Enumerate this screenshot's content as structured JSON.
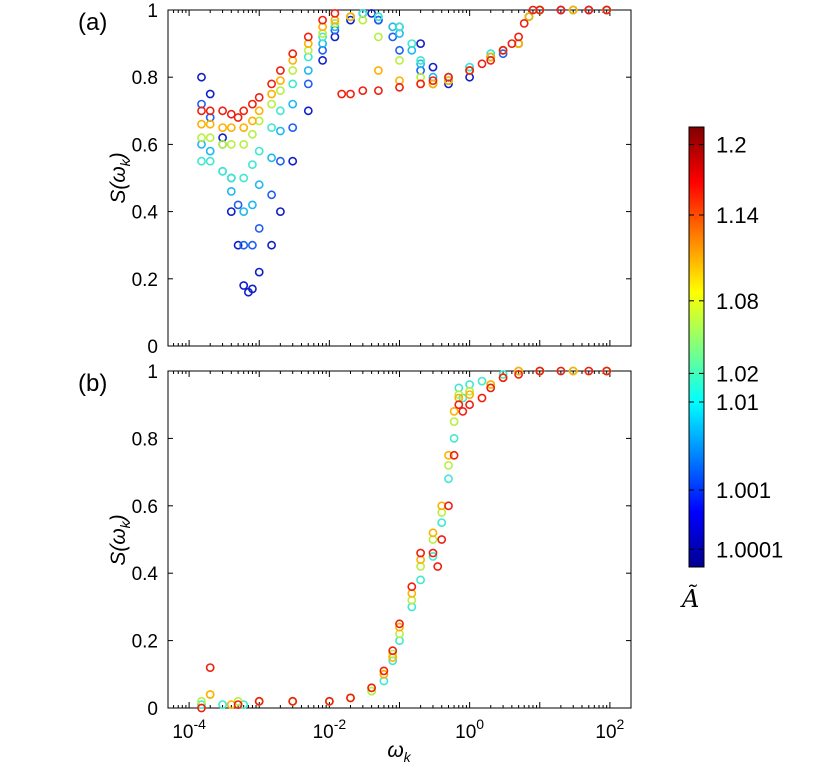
{
  "chart_data": [
    {
      "type": "scatter",
      "panel_label": "(a)",
      "xlabel": "ω",
      "xlabel_sub": "k",
      "ylabel_main": "S(ω",
      "ylabel_sub": "k",
      "ylabel_close": ")",
      "x_scale": "log",
      "xlim": [
        5e-05,
        200
      ],
      "ylim": [
        0,
        1
      ],
      "y_ticks": [
        0,
        0.2,
        0.4,
        0.6,
        0.8,
        1
      ],
      "y_tick_labels": [
        "0",
        "0.2",
        "0.4",
        "0.6",
        "0.8",
        "1"
      ],
      "grid": false,
      "series": [
        {
          "color_value": 1.0001,
          "x": [
            0.00015,
            0.0002,
            0.0003,
            0.0004,
            0.0005,
            0.0006,
            0.0007,
            0.0008,
            0.001,
            0.0015,
            0.002,
            0.003,
            0.005,
            0.008,
            0.012,
            0.02,
            0.03,
            0.04,
            0.05,
            0.1,
            0.2,
            0.3,
            0.5,
            1,
            2,
            3,
            5,
            7,
            10,
            20,
            50,
            90
          ],
          "y": [
            0.8,
            0.75,
            0.62,
            0.4,
            0.3,
            0.18,
            0.16,
            0.17,
            0.22,
            0.3,
            0.4,
            0.55,
            0.7,
            0.85,
            0.92,
            0.97,
            0.99,
            0.99,
            0.97,
            0.95,
            0.9,
            0.83,
            0.78,
            0.8,
            0.86,
            0.88,
            0.9,
            0.98,
            1,
            1,
            1,
            1
          ]
        },
        {
          "color_value": 1.001,
          "x": [
            0.00015,
            0.0002,
            0.0003,
            0.0004,
            0.0005,
            0.0006,
            0.0008,
            0.001,
            0.0015,
            0.002,
            0.003,
            0.005,
            0.008,
            0.012,
            0.02,
            0.03,
            0.05,
            0.08,
            0.1,
            0.2,
            0.3,
            0.5,
            1,
            2,
            3,
            5,
            7,
            10,
            30,
            90
          ],
          "y": [
            0.72,
            0.68,
            0.6,
            0.5,
            0.42,
            0.3,
            0.3,
            0.35,
            0.45,
            0.55,
            0.65,
            0.78,
            0.88,
            0.94,
            0.98,
            0.99,
            0.97,
            0.92,
            0.88,
            0.82,
            0.78,
            0.79,
            0.82,
            0.86,
            0.87,
            0.9,
            0.98,
            1,
            1,
            1
          ]
        },
        {
          "color_value": 1.01,
          "x": [
            0.00015,
            0.0002,
            0.0003,
            0.0004,
            0.0006,
            0.0008,
            0.001,
            0.0015,
            0.002,
            0.003,
            0.005,
            0.008,
            0.012,
            0.02,
            0.03,
            0.05,
            0.08,
            0.1,
            0.15,
            0.2,
            0.3,
            0.5,
            1,
            2,
            3,
            5,
            7,
            10,
            30,
            90
          ],
          "y": [
            0.6,
            0.58,
            0.52,
            0.46,
            0.4,
            0.42,
            0.48,
            0.56,
            0.64,
            0.72,
            0.82,
            0.9,
            0.95,
            0.98,
            0.99,
            0.98,
            0.95,
            0.93,
            0.88,
            0.84,
            0.8,
            0.8,
            0.83,
            0.87,
            0.88,
            0.9,
            0.98,
            1,
            1,
            1
          ]
        },
        {
          "color_value": 1.02,
          "x": [
            0.00015,
            0.0002,
            0.0003,
            0.0004,
            0.0006,
            0.0008,
            0.001,
            0.0015,
            0.002,
            0.003,
            0.005,
            0.008,
            0.012,
            0.02,
            0.03,
            0.05,
            0.1,
            0.15,
            0.2,
            0.3,
            0.5,
            1,
            2,
            3,
            5,
            7,
            10,
            30,
            90
          ],
          "y": [
            0.55,
            0.55,
            0.52,
            0.5,
            0.5,
            0.54,
            0.58,
            0.65,
            0.7,
            0.78,
            0.86,
            0.92,
            0.96,
            0.98,
            0.99,
            0.98,
            0.95,
            0.9,
            0.85,
            0.78,
            0.8,
            0.83,
            0.87,
            0.88,
            0.9,
            0.98,
            1,
            1,
            1
          ]
        },
        {
          "color_value": 1.08,
          "x": [
            0.00015,
            0.0002,
            0.0003,
            0.0004,
            0.0006,
            0.0008,
            0.001,
            0.0015,
            0.002,
            0.003,
            0.005,
            0.008,
            0.012,
            0.02,
            0.03,
            0.05,
            0.1,
            0.2,
            0.3,
            0.5,
            1,
            2,
            3,
            5,
            7,
            10,
            30,
            90
          ],
          "y": [
            0.62,
            0.62,
            0.6,
            0.6,
            0.6,
            0.63,
            0.67,
            0.72,
            0.76,
            0.82,
            0.88,
            0.93,
            0.96,
            0.98,
            0.97,
            0.92,
            0.85,
            0.8,
            0.78,
            0.79,
            0.82,
            0.86,
            0.88,
            0.9,
            0.98,
            1,
            1,
            1
          ]
        },
        {
          "color_value": 1.14,
          "x": [
            0.00015,
            0.0002,
            0.0003,
            0.0004,
            0.0006,
            0.0008,
            0.001,
            0.0015,
            0.002,
            0.003,
            0.005,
            0.008,
            0.012,
            0.02,
            0.05,
            0.1,
            0.2,
            0.3,
            0.5,
            1,
            2,
            3,
            5,
            7,
            10,
            30,
            90
          ],
          "y": [
            0.66,
            0.66,
            0.65,
            0.65,
            0.65,
            0.67,
            0.7,
            0.75,
            0.79,
            0.85,
            0.9,
            0.95,
            0.97,
            0.98,
            0.82,
            0.79,
            0.78,
            0.78,
            0.79,
            0.82,
            0.86,
            0.88,
            0.9,
            0.98,
            1,
            1,
            1
          ]
        },
        {
          "color_value": 1.2,
          "x": [
            0.00015,
            0.0002,
            0.0003,
            0.0004,
            0.0005,
            0.0006,
            0.0008,
            0.001,
            0.0015,
            0.002,
            0.003,
            0.005,
            0.008,
            0.012,
            0.015,
            0.02,
            0.03,
            0.05,
            0.1,
            0.2,
            0.3,
            0.5,
            1,
            1.5,
            2,
            3,
            4,
            5,
            6,
            8,
            10,
            20,
            50,
            90
          ],
          "y": [
            0.7,
            0.7,
            0.7,
            0.69,
            0.68,
            0.7,
            0.72,
            0.74,
            0.78,
            0.82,
            0.87,
            0.92,
            0.97,
            0.99,
            0.75,
            0.75,
            0.76,
            0.76,
            0.77,
            0.78,
            0.79,
            0.8,
            0.82,
            0.84,
            0.85,
            0.88,
            0.9,
            0.92,
            0.96,
            1,
            1,
            1,
            1,
            1
          ]
        }
      ]
    },
    {
      "type": "scatter",
      "panel_label": "(b)",
      "xlabel": "ω",
      "xlabel_sub": "k",
      "ylabel_main": "S(ω",
      "ylabel_sub": "k",
      "ylabel_close": ")",
      "x_scale": "log",
      "xlim": [
        5e-05,
        200
      ],
      "ylim": [
        0,
        1
      ],
      "x_ticks": [
        0.0001,
        0.01,
        1,
        100
      ],
      "x_tick_exponents": [
        "-4",
        "-2",
        "0",
        "2"
      ],
      "x_tick_base": "10",
      "y_ticks": [
        0,
        0.2,
        0.4,
        0.6,
        0.8,
        1
      ],
      "y_tick_labels": [
        "0",
        "0.2",
        "0.4",
        "0.6",
        "0.8",
        "1"
      ],
      "grid": false,
      "series": [
        {
          "color_value": 1.02,
          "x": [
            0.00015,
            0.0003,
            0.0006,
            0.001,
            0.003,
            0.01,
            0.02,
            0.04,
            0.06,
            0.08,
            0.1,
            0.15,
            0.2,
            0.3,
            0.4,
            0.5,
            0.6,
            0.7,
            0.8,
            1,
            1.5,
            2,
            3,
            5,
            10,
            30,
            90
          ],
          "y": [
            0.01,
            0.01,
            0.01,
            0.02,
            0.02,
            0.02,
            0.03,
            0.05,
            0.08,
            0.14,
            0.2,
            0.3,
            0.38,
            0.45,
            0.55,
            0.68,
            0.8,
            0.95,
            0.92,
            0.96,
            0.97,
            0.95,
            0.99,
            1,
            1,
            1,
            1
          ]
        },
        {
          "color_value": 1.08,
          "x": [
            0.00015,
            0.0002,
            0.0005,
            0.001,
            0.003,
            0.01,
            0.02,
            0.04,
            0.06,
            0.08,
            0.1,
            0.15,
            0.2,
            0.3,
            0.4,
            0.5,
            0.6,
            0.7,
            1,
            2,
            3,
            5,
            10,
            30,
            90
          ],
          "y": [
            0.02,
            0.04,
            0.02,
            0.02,
            0.02,
            0.02,
            0.03,
            0.05,
            0.1,
            0.16,
            0.22,
            0.32,
            0.42,
            0.5,
            0.58,
            0.72,
            0.85,
            0.93,
            0.94,
            0.96,
            0.98,
            1,
            1,
            1,
            1
          ]
        },
        {
          "color_value": 1.14,
          "x": [
            0.0002,
            0.0004,
            0.001,
            0.003,
            0.01,
            0.02,
            0.04,
            0.06,
            0.08,
            0.1,
            0.15,
            0.2,
            0.3,
            0.4,
            0.5,
            0.6,
            0.7,
            1,
            2,
            3,
            5,
            10,
            30,
            90
          ],
          "y": [
            0.04,
            0.01,
            0.02,
            0.02,
            0.02,
            0.03,
            0.06,
            0.1,
            0.15,
            0.24,
            0.34,
            0.44,
            0.52,
            0.6,
            0.75,
            0.88,
            0.92,
            0.93,
            0.96,
            0.98,
            1,
            1,
            1,
            1
          ]
        },
        {
          "color_value": 1.2,
          "x": [
            0.00015,
            0.0002,
            0.0005,
            0.001,
            0.003,
            0.01,
            0.02,
            0.04,
            0.06,
            0.08,
            0.1,
            0.15,
            0.2,
            0.3,
            0.35,
            0.4,
            0.5,
            0.6,
            0.7,
            0.8,
            1,
            1.5,
            2,
            3,
            5,
            10,
            20,
            50,
            90
          ],
          "y": [
            0.0,
            0.12,
            0.01,
            0.02,
            0.02,
            0.02,
            0.03,
            0.06,
            0.11,
            0.17,
            0.25,
            0.36,
            0.46,
            0.46,
            0.42,
            0.5,
            0.6,
            0.75,
            0.9,
            0.88,
            0.9,
            0.92,
            0.95,
            0.98,
            0.99,
            1,
            1,
            1,
            1
          ]
        }
      ]
    }
  ],
  "colorbar": {
    "title": "Ã",
    "tick_labels": [
      "1.2",
      "1.14",
      "1.08",
      "1.02",
      "1.01",
      "1.001",
      "1.0001"
    ],
    "tick_values": [
      1.2,
      1.14,
      1.08,
      1.02,
      1.01,
      1.001,
      1.0001
    ],
    "tick_fractions": [
      0.96,
      0.8,
      0.605,
      0.44,
      0.375,
      0.175,
      0.04
    ],
    "colormap": [
      "#00008f",
      "#0000ff",
      "#0080ff",
      "#00ffff",
      "#80ff80",
      "#ffff00",
      "#ff8000",
      "#ff0000",
      "#800000"
    ]
  },
  "colors": {
    "1.0001": "#1020c8",
    "1.001": "#2060f0",
    "1.01": "#20b8f0",
    "1.02": "#40e8d0",
    "1.08": "#b8f040",
    "1.14": "#ffb000",
    "1.2": "#f02010"
  }
}
